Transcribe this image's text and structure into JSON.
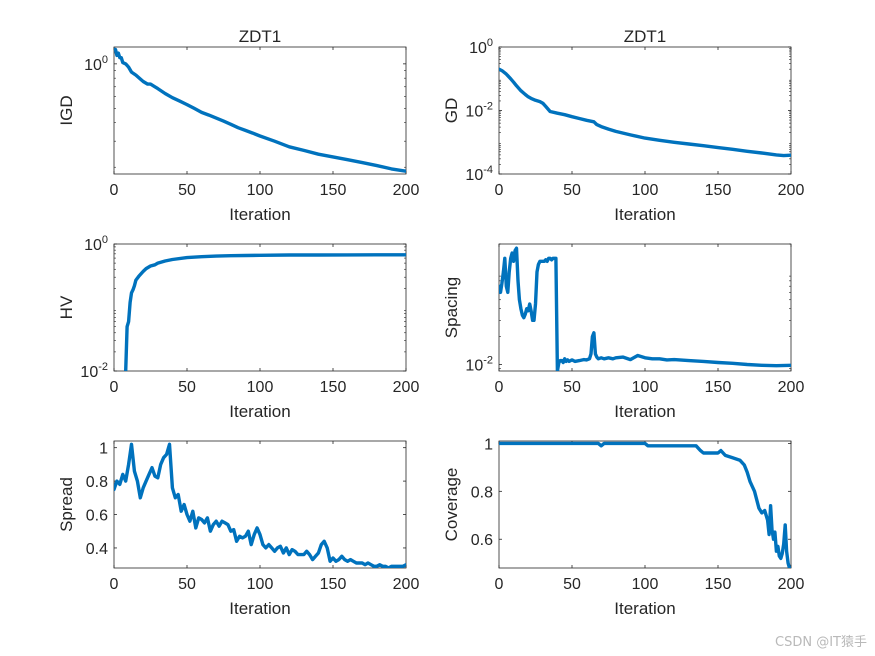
{
  "watermark": "CSDN @IT猿手",
  "colors": {
    "line": "#0072BD",
    "axis": "#262626",
    "background": "#ffffff"
  },
  "chart_data": [
    {
      "type": "line",
      "title": "ZDT1",
      "xlabel": "Iteration",
      "ylabel": "IGD",
      "xlim": [
        0,
        200
      ],
      "yscale": "log",
      "ylim": [
        0.18,
        1.3
      ],
      "xticks": [
        0,
        50,
        100,
        150,
        200
      ],
      "yticks": [
        {
          "value": 1,
          "base": "10",
          "exp": "0"
        }
      ],
      "series": [
        {
          "x": [
            0,
            1,
            2,
            3,
            4,
            5,
            6,
            8,
            10,
            12,
            15,
            18,
            20,
            23,
            25,
            28,
            30,
            35,
            40,
            45,
            50,
            55,
            60,
            65,
            70,
            75,
            80,
            85,
            90,
            95,
            100,
            110,
            120,
            130,
            140,
            150,
            160,
            170,
            180,
            190,
            200
          ],
          "y": [
            1.25,
            1.25,
            1.14,
            1.18,
            1.1,
            1.1,
            1.02,
            1.0,
            0.95,
            0.88,
            0.84,
            0.79,
            0.76,
            0.73,
            0.73,
            0.7,
            0.68,
            0.63,
            0.59,
            0.56,
            0.53,
            0.5,
            0.47,
            0.45,
            0.43,
            0.41,
            0.39,
            0.37,
            0.355,
            0.34,
            0.325,
            0.3,
            0.275,
            0.26,
            0.245,
            0.235,
            0.225,
            0.215,
            0.205,
            0.195,
            0.188
          ]
        }
      ]
    },
    {
      "type": "line",
      "title": "ZDT1",
      "xlabel": "Iteration",
      "ylabel": "GD",
      "xlim": [
        0,
        200
      ],
      "yscale": "log",
      "ylim": [
        0.0001,
        1
      ],
      "xticks": [
        0,
        50,
        100,
        150,
        200
      ],
      "yticks": [
        {
          "value": 1,
          "base": "10",
          "exp": "0"
        },
        {
          "value": 0.01,
          "base": "10",
          "exp": "-2"
        },
        {
          "value": 0.0001,
          "base": "10",
          "exp": "-4"
        }
      ],
      "series": [
        {
          "x": [
            0,
            2,
            5,
            8,
            10,
            12,
            15,
            18,
            20,
            22,
            25,
            28,
            30,
            32,
            35,
            40,
            45,
            50,
            55,
            60,
            65,
            67,
            70,
            75,
            80,
            90,
            100,
            110,
            120,
            130,
            140,
            150,
            160,
            170,
            180,
            190,
            195,
            200
          ],
          "y": [
            0.2,
            0.18,
            0.14,
            0.1,
            0.078,
            0.06,
            0.042,
            0.032,
            0.027,
            0.024,
            0.021,
            0.019,
            0.017,
            0.0135,
            0.0093,
            0.0082,
            0.0074,
            0.0064,
            0.0056,
            0.0049,
            0.0044,
            0.0036,
            0.0031,
            0.0026,
            0.0022,
            0.0017,
            0.00135,
            0.00115,
            0.001,
            0.00088,
            0.00078,
            0.00068,
            0.0006,
            0.00052,
            0.00046,
            0.0004,
            0.00038,
            0.00039
          ]
        }
      ]
    },
    {
      "type": "line",
      "title": "",
      "xlabel": "Iteration",
      "ylabel": "HV",
      "xlim": [
        0,
        200
      ],
      "yscale": "log",
      "ylim": [
        0.01,
        1
      ],
      "xticks": [
        0,
        50,
        100,
        150,
        200
      ],
      "yticks": [
        {
          "value": 1,
          "base": "10",
          "exp": "0"
        },
        {
          "value": 0.01,
          "base": "10",
          "exp": "-2"
        }
      ],
      "series": [
        {
          "x": [
            8,
            9,
            10,
            11,
            12,
            13,
            14,
            15,
            17,
            20,
            22,
            25,
            28,
            30,
            35,
            40,
            50,
            60,
            70,
            80,
            90,
            100,
            120,
            140,
            160,
            180,
            200
          ],
          "y": [
            0.01,
            0.05,
            0.06,
            0.12,
            0.17,
            0.19,
            0.22,
            0.27,
            0.31,
            0.37,
            0.41,
            0.45,
            0.47,
            0.5,
            0.54,
            0.57,
            0.61,
            0.63,
            0.645,
            0.655,
            0.66,
            0.665,
            0.67,
            0.672,
            0.674,
            0.675,
            0.676
          ]
        }
      ]
    },
    {
      "type": "line",
      "title": "",
      "xlabel": "Iteration",
      "ylabel": "Spacing",
      "xlim": [
        0,
        200
      ],
      "yscale": "log",
      "ylim": [
        0.0085,
        0.2
      ],
      "xticks": [
        0,
        50,
        100,
        150,
        200
      ],
      "yticks": [
        {
          "value": 0.01,
          "base": "10",
          "exp": "-2"
        }
      ],
      "series": [
        {
          "x": [
            0,
            1,
            2,
            3,
            4,
            5,
            6,
            7,
            8,
            9,
            10,
            11,
            12,
            13,
            14,
            15,
            16,
            17,
            18,
            19,
            20,
            21,
            22,
            23,
            24,
            25,
            26,
            27,
            28,
            29,
            30,
            31,
            32,
            33,
            34,
            35,
            36,
            37,
            38,
            39,
            40,
            41,
            42,
            43,
            44,
            45,
            46,
            47,
            48,
            50,
            52,
            55,
            58,
            60,
            62,
            63,
            64,
            65,
            66,
            67,
            68,
            70,
            72,
            75,
            78,
            80,
            85,
            90,
            95,
            100,
            105,
            110,
            115,
            120,
            130,
            140,
            150,
            160,
            170,
            180,
            190,
            200
          ],
          "y": [
            0.07,
            0.06,
            0.075,
            0.1,
            0.14,
            0.07,
            0.06,
            0.1,
            0.14,
            0.16,
            0.13,
            0.17,
            0.18,
            0.08,
            0.05,
            0.04,
            0.034,
            0.032,
            0.035,
            0.04,
            0.038,
            0.045,
            0.038,
            0.03,
            0.03,
            0.045,
            0.1,
            0.12,
            0.13,
            0.13,
            0.13,
            0.13,
            0.135,
            0.13,
            0.14,
            0.14,
            0.135,
            0.14,
            0.14,
            0.14,
            0.0085,
            0.0105,
            0.011,
            0.011,
            0.0105,
            0.0115,
            0.0108,
            0.0112,
            0.0108,
            0.0112,
            0.0108,
            0.011,
            0.0113,
            0.0112,
            0.0115,
            0.013,
            0.02,
            0.022,
            0.013,
            0.012,
            0.0115,
            0.0118,
            0.0115,
            0.0118,
            0.0115,
            0.0118,
            0.012,
            0.0113,
            0.0125,
            0.0118,
            0.0115,
            0.0115,
            0.0112,
            0.0113,
            0.011,
            0.0108,
            0.0105,
            0.0103,
            0.01,
            0.0098,
            0.0097,
            0.0098
          ]
        }
      ]
    },
    {
      "type": "line",
      "title": "",
      "xlabel": "Iteration",
      "ylabel": "Spread",
      "xlim": [
        0,
        200
      ],
      "ylim": [
        0.28,
        1.04
      ],
      "xticks": [
        0,
        50,
        100,
        150,
        200
      ],
      "yticks": [
        {
          "value": 0.4,
          "label": "0.4"
        },
        {
          "value": 0.6,
          "label": "0.6"
        },
        {
          "value": 0.8,
          "label": "0.8"
        },
        {
          "value": 1,
          "label": "1"
        }
      ],
      "series": [
        {
          "x": [
            0,
            2,
            4,
            6,
            8,
            10,
            12,
            14,
            16,
            18,
            20,
            22,
            24,
            26,
            28,
            30,
            32,
            34,
            36,
            38,
            40,
            42,
            44,
            46,
            48,
            50,
            52,
            54,
            56,
            58,
            60,
            62,
            64,
            66,
            68,
            70,
            72,
            74,
            76,
            78,
            80,
            82,
            84,
            86,
            88,
            90,
            92,
            94,
            96,
            98,
            100,
            102,
            104,
            106,
            108,
            110,
            112,
            114,
            116,
            118,
            120,
            122,
            124,
            126,
            128,
            130,
            132,
            134,
            136,
            138,
            140,
            142,
            144,
            146,
            148,
            150,
            152,
            154,
            156,
            158,
            160,
            162,
            164,
            166,
            168,
            170,
            172,
            174,
            176,
            178,
            180,
            182,
            184,
            186,
            188,
            190,
            192,
            194,
            196,
            198,
            200
          ],
          "y": [
            0.75,
            0.8,
            0.78,
            0.84,
            0.8,
            0.9,
            1.02,
            0.86,
            0.8,
            0.7,
            0.76,
            0.8,
            0.84,
            0.88,
            0.83,
            0.82,
            0.9,
            0.94,
            0.96,
            1.02,
            0.76,
            0.7,
            0.72,
            0.62,
            0.66,
            0.6,
            0.56,
            0.62,
            0.52,
            0.58,
            0.57,
            0.55,
            0.58,
            0.5,
            0.54,
            0.56,
            0.53,
            0.56,
            0.55,
            0.54,
            0.5,
            0.51,
            0.44,
            0.47,
            0.46,
            0.47,
            0.5,
            0.42,
            0.48,
            0.52,
            0.48,
            0.42,
            0.4,
            0.42,
            0.4,
            0.38,
            0.4,
            0.41,
            0.37,
            0.4,
            0.36,
            0.39,
            0.38,
            0.36,
            0.36,
            0.36,
            0.38,
            0.36,
            0.33,
            0.35,
            0.37,
            0.42,
            0.44,
            0.4,
            0.32,
            0.34,
            0.32,
            0.33,
            0.35,
            0.33,
            0.32,
            0.33,
            0.32,
            0.31,
            0.31,
            0.31,
            0.3,
            0.31,
            0.3,
            0.29,
            0.29,
            0.3,
            0.29,
            0.29,
            0.28,
            0.29,
            0.29,
            0.29,
            0.29,
            0.29,
            0.3
          ]
        }
      ]
    },
    {
      "type": "line",
      "title": "",
      "xlabel": "Iteration",
      "ylabel": "Coverage",
      "xlim": [
        0,
        200
      ],
      "ylim": [
        0.48,
        1.01
      ],
      "xticks": [
        0,
        50,
        100,
        150,
        200
      ],
      "yticks": [
        {
          "value": 0.6,
          "label": "0.6"
        },
        {
          "value": 0.8,
          "label": "0.8"
        },
        {
          "value": 1,
          "label": "1"
        }
      ],
      "series": [
        {
          "x": [
            0,
            20,
            40,
            60,
            68,
            70,
            72,
            75,
            80,
            90,
            100,
            102,
            104,
            110,
            120,
            130,
            135,
            138,
            140,
            145,
            150,
            152,
            155,
            160,
            165,
            168,
            170,
            172,
            175,
            178,
            180,
            182,
            184,
            185,
            186,
            187,
            188,
            189,
            190,
            191,
            192,
            193,
            194,
            195,
            196,
            197,
            198,
            199,
            200
          ],
          "y": [
            1,
            1,
            1,
            1,
            1,
            0.99,
            1,
            1,
            1,
            1,
            1,
            0.99,
            0.99,
            0.99,
            0.99,
            0.99,
            0.99,
            0.97,
            0.96,
            0.96,
            0.96,
            0.97,
            0.95,
            0.94,
            0.93,
            0.91,
            0.88,
            0.84,
            0.8,
            0.73,
            0.71,
            0.72,
            0.68,
            0.62,
            0.74,
            0.64,
            0.6,
            0.63,
            0.55,
            0.57,
            0.53,
            0.52,
            0.54,
            0.58,
            0.66,
            0.55,
            0.5,
            0.48,
            0.47
          ]
        }
      ]
    }
  ]
}
